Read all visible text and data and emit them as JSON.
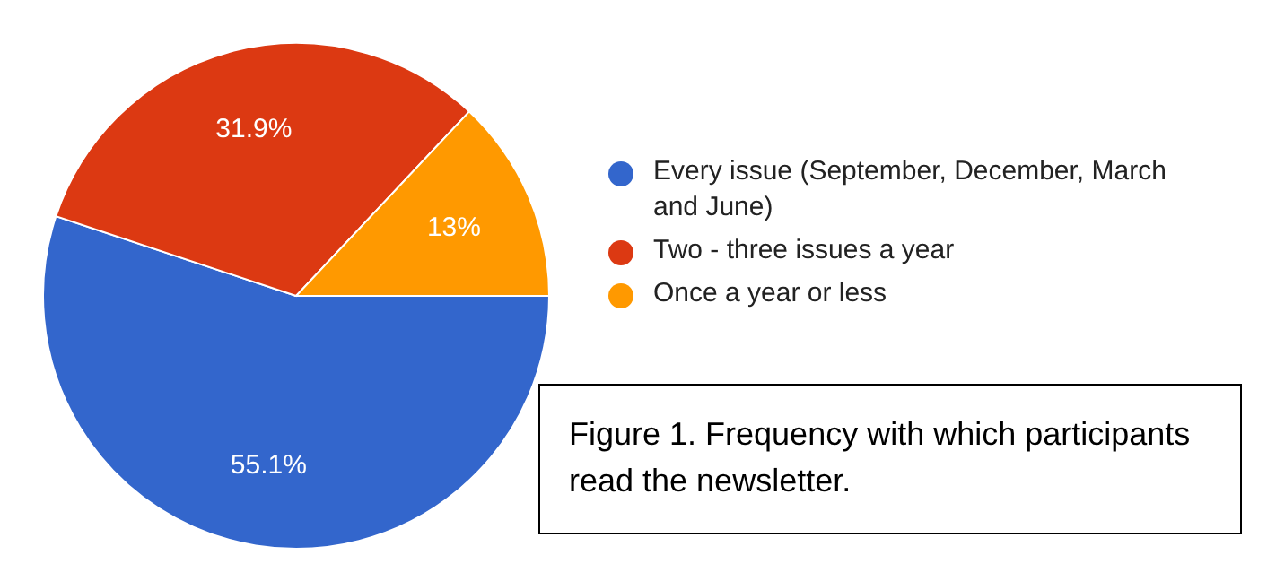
{
  "chart_data": {
    "type": "pie",
    "categories": [
      "Every issue (September, December, March and June)",
      "Two - three issues a year",
      "Once a year or less"
    ],
    "values": [
      55.1,
      31.9,
      13
    ],
    "colors": [
      "#3366cc",
      "#dc3912",
      "#ff9900"
    ],
    "value_labels": [
      "55.1%",
      "31.9%",
      "13%"
    ],
    "legend": "right",
    "annotations": [
      "Figure 1. Frequency with which participants read the newsletter."
    ]
  }
}
